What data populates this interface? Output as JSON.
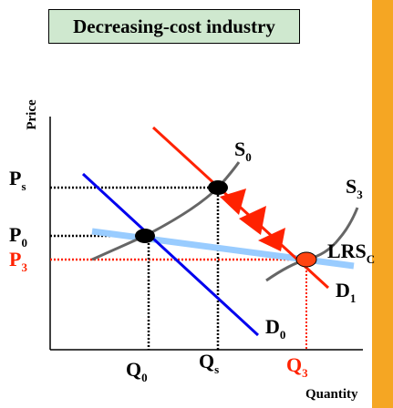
{
  "chart_data": {
    "type": "line",
    "title": "Decreasing-cost industry",
    "xlabel": "Quantity",
    "ylabel": "Price",
    "x_ticks": [
      {
        "label": "Q",
        "sub": "0",
        "color": "#000000"
      },
      {
        "label": "Q",
        "sub": "s",
        "color": "#000000"
      },
      {
        "label": "Q",
        "sub": "3",
        "color": "#ff2200"
      }
    ],
    "y_ticks": [
      {
        "label": "P",
        "sub": "s",
        "color": "#000000"
      },
      {
        "label": "P",
        "sub": "0",
        "color": "#000000"
      },
      {
        "label": "P",
        "sub": "3",
        "color": "#ff2200"
      }
    ],
    "series": [
      {
        "name": "S",
        "sub": "0",
        "color": "#ff2200"
      },
      {
        "name": "S",
        "sub": "3",
        "color": "#666666"
      },
      {
        "name": "D",
        "sub": "0",
        "color": "#0000ee"
      },
      {
        "name": "D",
        "sub": "1",
        "color": "#ff2200"
      },
      {
        "name": "LRS",
        "sub": "C",
        "color": "#99ccff"
      }
    ],
    "points": [
      {
        "id": "P0-Q0",
        "color": "#000000"
      },
      {
        "id": "Ps-Qs",
        "color": "#000000"
      },
      {
        "id": "P3-Q3",
        "color": "#ff4411"
      }
    ]
  },
  "colors": {
    "accent_bar": "#f5a623",
    "title_bg": "#cfe8cf"
  }
}
